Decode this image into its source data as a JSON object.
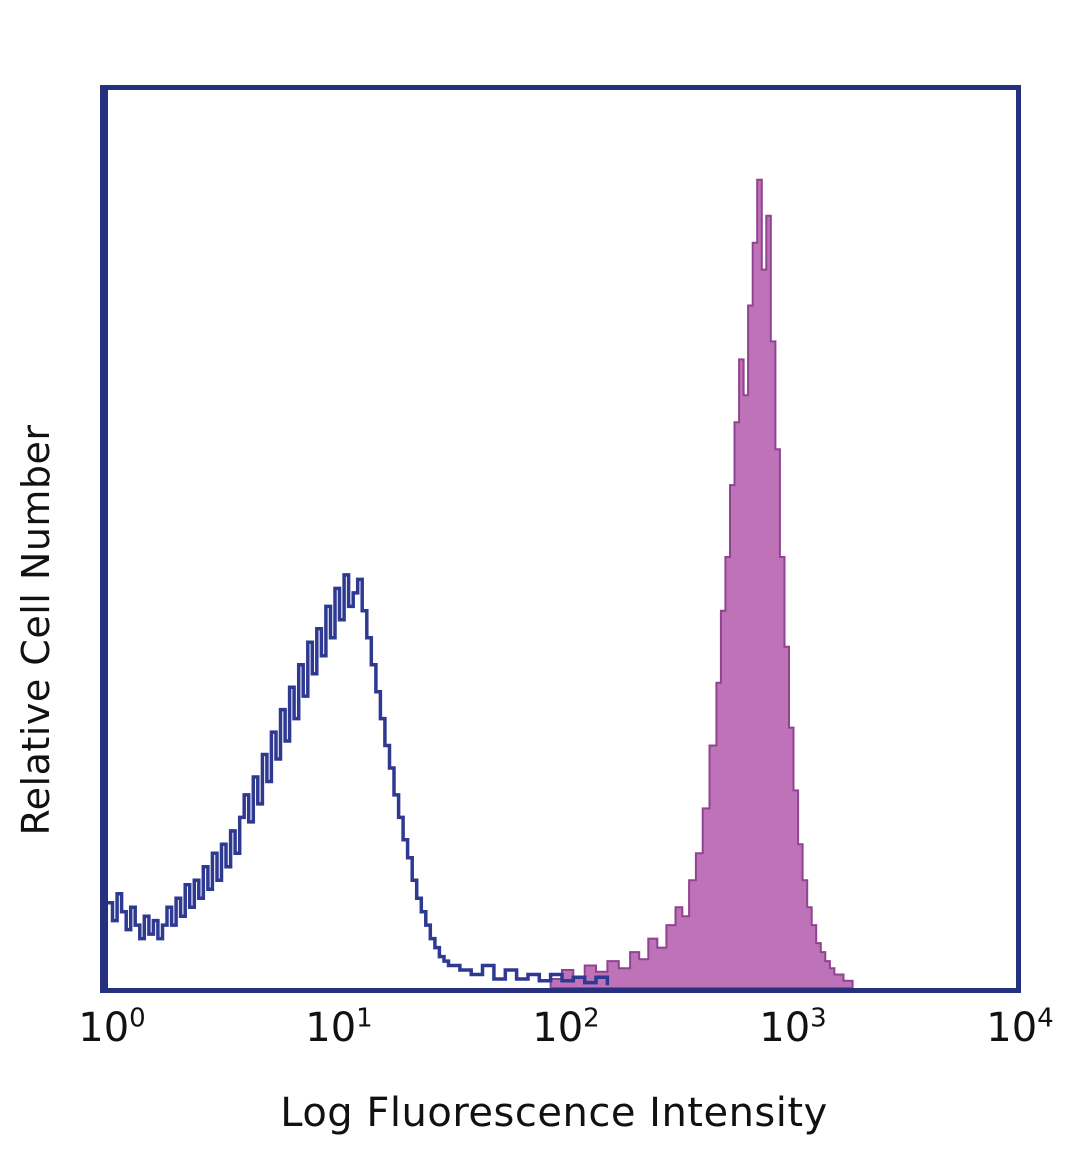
{
  "chart_data": {
    "type": "area",
    "subtype": "flow-cytometry-overlay-histogram",
    "title": "",
    "xlabel": "Log Fluorescence Intensity",
    "ylabel": "Relative Cell Number",
    "x_scale": "log10",
    "x_range_decades": [
      0,
      4
    ],
    "y_range": [
      0,
      1
    ],
    "grid": false,
    "legend": "none",
    "x_ticks": [
      {
        "base": "10",
        "exp": "0",
        "log_position": 0
      },
      {
        "base": "10",
        "exp": "1",
        "log_position": 1
      },
      {
        "base": "10",
        "exp": "2",
        "log_position": 2
      },
      {
        "base": "10",
        "exp": "3",
        "log_position": 3
      },
      {
        "base": "10",
        "exp": "4",
        "log_position": 4
      }
    ],
    "colors": {
      "axis_frame": "#25307f",
      "background": "#ffffff",
      "open_histogram": "#2e3a92",
      "filled_histogram": "#b55fad",
      "filled_edge": "#8f4390"
    },
    "series": [
      {
        "name": "filled-positive-histogram",
        "style": "filled",
        "color": "#b55fad",
        "edge_color": "#8f4390",
        "fill_opacity": 0.88,
        "peak_log_x": 2.87,
        "peak_height": 0.9,
        "points": [
          [
            1.95,
            0.01
          ],
          [
            2.0,
            0.02
          ],
          [
            2.05,
            0.012
          ],
          [
            2.1,
            0.025
          ],
          [
            2.15,
            0.018
          ],
          [
            2.2,
            0.03
          ],
          [
            2.25,
            0.022
          ],
          [
            2.3,
            0.04
          ],
          [
            2.34,
            0.032
          ],
          [
            2.38,
            0.055
          ],
          [
            2.42,
            0.045
          ],
          [
            2.46,
            0.07
          ],
          [
            2.5,
            0.09
          ],
          [
            2.53,
            0.08
          ],
          [
            2.56,
            0.12
          ],
          [
            2.59,
            0.15
          ],
          [
            2.62,
            0.2
          ],
          [
            2.65,
            0.27
          ],
          [
            2.68,
            0.34
          ],
          [
            2.7,
            0.42
          ],
          [
            2.72,
            0.48
          ],
          [
            2.74,
            0.56
          ],
          [
            2.76,
            0.63
          ],
          [
            2.78,
            0.7
          ],
          [
            2.8,
            0.66
          ],
          [
            2.82,
            0.76
          ],
          [
            2.84,
            0.83
          ],
          [
            2.86,
            0.9
          ],
          [
            2.88,
            0.8
          ],
          [
            2.9,
            0.86
          ],
          [
            2.92,
            0.72
          ],
          [
            2.94,
            0.6
          ],
          [
            2.96,
            0.48
          ],
          [
            2.98,
            0.38
          ],
          [
            3.0,
            0.29
          ],
          [
            3.02,
            0.22
          ],
          [
            3.04,
            0.16
          ],
          [
            3.06,
            0.12
          ],
          [
            3.08,
            0.09
          ],
          [
            3.1,
            0.07
          ],
          [
            3.12,
            0.05
          ],
          [
            3.14,
            0.04
          ],
          [
            3.16,
            0.03
          ],
          [
            3.18,
            0.022
          ],
          [
            3.2,
            0.015
          ],
          [
            3.24,
            0.008
          ],
          [
            3.28,
            0.0
          ]
        ]
      },
      {
        "name": "open-control-histogram",
        "style": "open",
        "color": "#2e3a92",
        "line_width": 3.5,
        "peak_log_x": 1.05,
        "peak_height": 0.46,
        "points": [
          [
            0.0,
            0.095
          ],
          [
            0.02,
            0.075
          ],
          [
            0.04,
            0.105
          ],
          [
            0.06,
            0.085
          ],
          [
            0.08,
            0.065
          ],
          [
            0.1,
            0.09
          ],
          [
            0.12,
            0.07
          ],
          [
            0.14,
            0.055
          ],
          [
            0.16,
            0.08
          ],
          [
            0.18,
            0.06
          ],
          [
            0.2,
            0.075
          ],
          [
            0.22,
            0.055
          ],
          [
            0.24,
            0.07
          ],
          [
            0.26,
            0.09
          ],
          [
            0.28,
            0.07
          ],
          [
            0.3,
            0.1
          ],
          [
            0.32,
            0.08
          ],
          [
            0.34,
            0.115
          ],
          [
            0.36,
            0.09
          ],
          [
            0.38,
            0.12
          ],
          [
            0.4,
            0.1
          ],
          [
            0.42,
            0.135
          ],
          [
            0.44,
            0.11
          ],
          [
            0.46,
            0.15
          ],
          [
            0.48,
            0.12
          ],
          [
            0.5,
            0.16
          ],
          [
            0.52,
            0.135
          ],
          [
            0.54,
            0.175
          ],
          [
            0.56,
            0.15
          ],
          [
            0.58,
            0.19
          ],
          [
            0.6,
            0.215
          ],
          [
            0.62,
            0.185
          ],
          [
            0.64,
            0.235
          ],
          [
            0.66,
            0.205
          ],
          [
            0.68,
            0.26
          ],
          [
            0.7,
            0.23
          ],
          [
            0.72,
            0.285
          ],
          [
            0.74,
            0.255
          ],
          [
            0.76,
            0.31
          ],
          [
            0.78,
            0.275
          ],
          [
            0.8,
            0.335
          ],
          [
            0.82,
            0.3
          ],
          [
            0.84,
            0.36
          ],
          [
            0.86,
            0.325
          ],
          [
            0.88,
            0.385
          ],
          [
            0.9,
            0.35
          ],
          [
            0.92,
            0.4
          ],
          [
            0.94,
            0.37
          ],
          [
            0.96,
            0.425
          ],
          [
            0.98,
            0.39
          ],
          [
            1.0,
            0.445
          ],
          [
            1.02,
            0.41
          ],
          [
            1.04,
            0.46
          ],
          [
            1.06,
            0.425
          ],
          [
            1.08,
            0.44
          ],
          [
            1.1,
            0.455
          ],
          [
            1.12,
            0.42
          ],
          [
            1.14,
            0.39
          ],
          [
            1.16,
            0.36
          ],
          [
            1.18,
            0.33
          ],
          [
            1.2,
            0.3
          ],
          [
            1.22,
            0.27
          ],
          [
            1.24,
            0.245
          ],
          [
            1.26,
            0.215
          ],
          [
            1.28,
            0.19
          ],
          [
            1.3,
            0.165
          ],
          [
            1.32,
            0.145
          ],
          [
            1.34,
            0.12
          ],
          [
            1.36,
            0.1
          ],
          [
            1.38,
            0.085
          ],
          [
            1.4,
            0.07
          ],
          [
            1.42,
            0.055
          ],
          [
            1.44,
            0.045
          ],
          [
            1.46,
            0.035
          ],
          [
            1.48,
            0.03
          ],
          [
            1.5,
            0.025
          ],
          [
            1.55,
            0.02
          ],
          [
            1.6,
            0.015
          ],
          [
            1.65,
            0.025
          ],
          [
            1.7,
            0.01
          ],
          [
            1.75,
            0.02
          ],
          [
            1.8,
            0.01
          ],
          [
            1.85,
            0.015
          ],
          [
            1.9,
            0.008
          ],
          [
            1.95,
            0.015
          ],
          [
            2.0,
            0.008
          ],
          [
            2.05,
            0.012
          ],
          [
            2.1,
            0.006
          ],
          [
            2.15,
            0.012
          ],
          [
            2.2,
            0.005
          ]
        ]
      }
    ]
  }
}
